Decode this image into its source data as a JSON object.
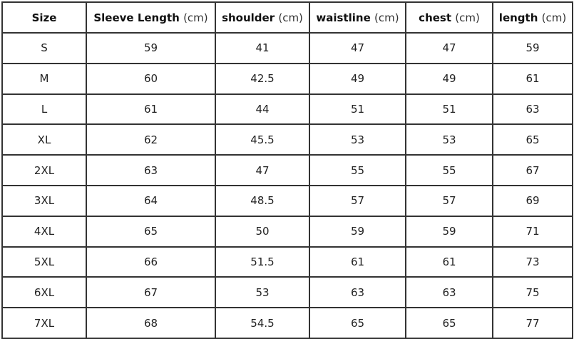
{
  "headers": [
    {
      "name": "Size",
      "unit": ""
    },
    {
      "name": "Sleeve Length",
      "unit": "(cm)"
    },
    {
      "name": "shoulder",
      "unit": "(cm)"
    },
    {
      "name": "waistline",
      "unit": "(cm)"
    },
    {
      "name": "chest",
      "unit": "(cm)"
    },
    {
      "name": "length",
      "unit": "(cm)"
    }
  ],
  "rows": [
    [
      "S",
      "59",
      "41",
      "47",
      "47",
      "59"
    ],
    [
      "M",
      "60",
      "42.5",
      "49",
      "49",
      "61"
    ],
    [
      "L",
      "61",
      "44",
      "51",
      "51",
      "63"
    ],
    [
      "XL",
      "62",
      "45.5",
      "53",
      "53",
      "65"
    ],
    [
      "2XL",
      "63",
      "47",
      "55",
      "55",
      "67"
    ],
    [
      "3XL",
      "64",
      "48.5",
      "57",
      "57",
      "69"
    ],
    [
      "4XL",
      "65",
      "50",
      "59",
      "59",
      "71"
    ],
    [
      "5XL",
      "66",
      "51.5",
      "61",
      "61",
      "73"
    ],
    [
      "6XL",
      "67",
      "53",
      "63",
      "63",
      "75"
    ],
    [
      "7XL",
      "68",
      "54.5",
      "65",
      "65",
      "77"
    ]
  ]
}
